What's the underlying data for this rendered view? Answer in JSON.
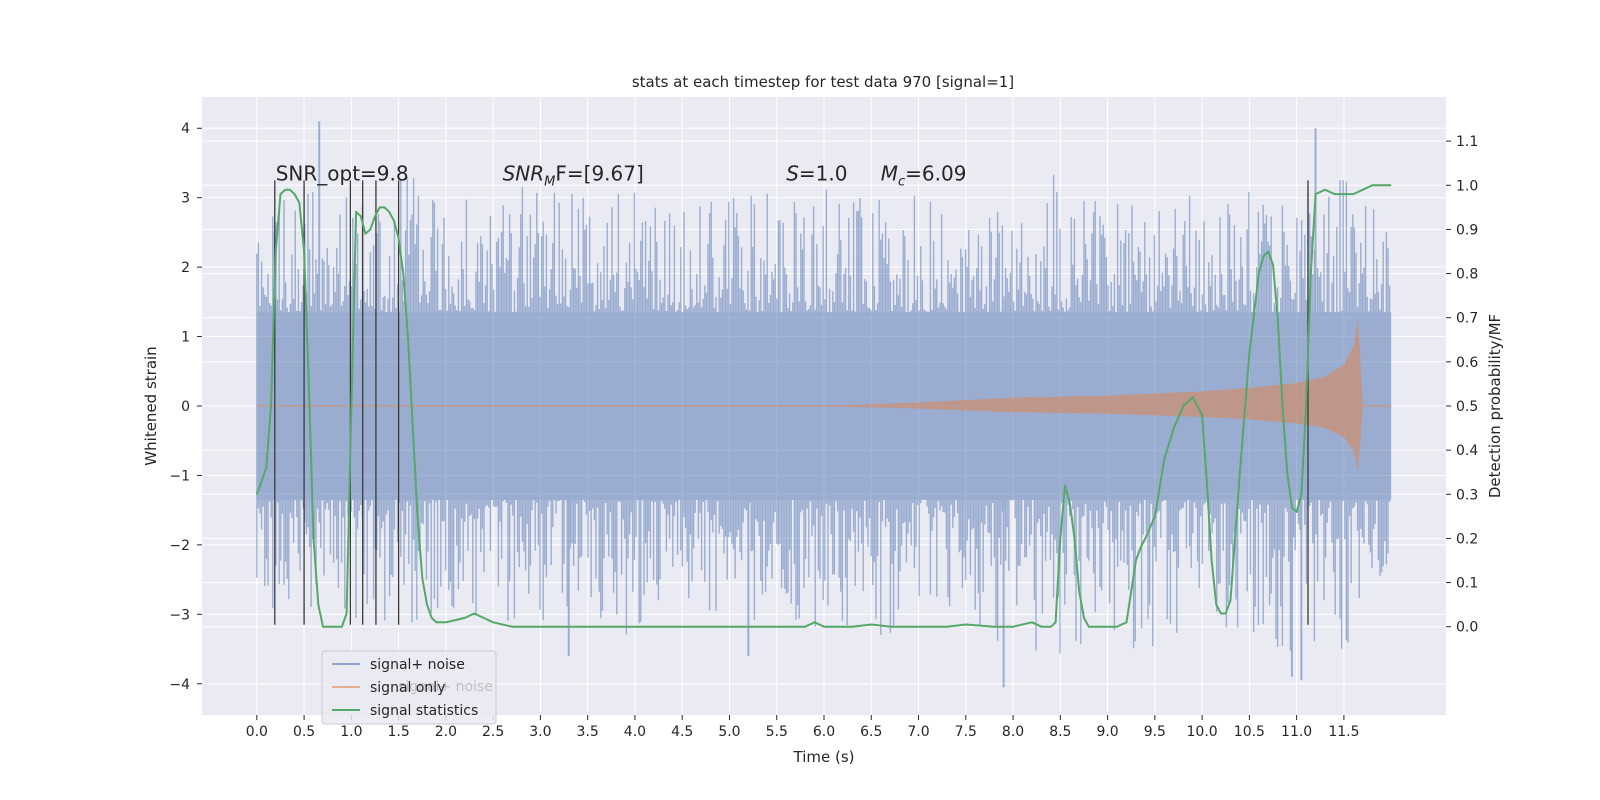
{
  "chart_data": {
    "type": "line",
    "title": "stats at each timestep for test data 970 [signal=1]",
    "xlabel": "Time (s)",
    "ylabel": "Whitened strain",
    "ylabel_right": "Detection probability/MF",
    "xlim": [
      -0.58,
      12.58
    ],
    "ylim": [
      -4.45,
      4.45
    ],
    "ylim_right": [
      -0.2,
      1.2
    ],
    "x_ticks": [
      0.0,
      0.5,
      1.0,
      1.5,
      2.0,
      2.5,
      3.0,
      3.5,
      4.0,
      4.5,
      5.0,
      5.5,
      6.0,
      6.5,
      7.0,
      7.5,
      8.0,
      8.5,
      9.0,
      9.5,
      10.0,
      10.5,
      11.0,
      11.5
    ],
    "x_tick_labels": [
      "0.0",
      "0.5",
      "1.0",
      "1.5",
      "2.0",
      "2.5",
      "3.0",
      "3.5",
      "4.0",
      "4.5",
      "5.0",
      "5.5",
      "6.0",
      "6.5",
      "7.0",
      "7.5",
      "8.0",
      "8.5",
      "9.0",
      "9.5",
      "10.0",
      "10.5",
      "11.0",
      "11.5"
    ],
    "y_ticks": [
      -4,
      -3,
      -2,
      -1,
      0,
      1,
      2,
      3,
      4
    ],
    "y_tick_labels": [
      "−4",
      "−3",
      "−2",
      "−1",
      "0",
      "1",
      "2",
      "3",
      "4"
    ],
    "y_ticks_right": [
      0.0,
      0.1,
      0.2,
      0.3,
      0.4,
      0.5,
      0.6,
      0.7,
      0.8,
      0.9,
      1.0,
      1.1
    ],
    "y_tick_labels_right": [
      "0.0",
      "0.1",
      "0.2",
      "0.3",
      "0.4",
      "0.5",
      "0.6",
      "0.7",
      "0.8",
      "0.9",
      "1.0",
      "1.1"
    ],
    "grid": true,
    "legend_position": "lower-left",
    "annotations": [
      {
        "text_parts": [
          {
            "t": "SNR_opt=9.8",
            "italic": false,
            "sub": false
          }
        ],
        "x": 0.2,
        "y": 3.25
      },
      {
        "text_parts": [
          {
            "t": "SNR",
            "italic": true,
            "sub": false
          },
          {
            "t": "M",
            "italic": true,
            "sub": true
          },
          {
            "t": "F=[9.67]",
            "italic": false,
            "sub": false
          }
        ],
        "x": 2.6,
        "y": 3.25
      },
      {
        "text_parts": [
          {
            "t": "S",
            "italic": true,
            "sub": false
          },
          {
            "t": "=1.0",
            "italic": false,
            "sub": false
          }
        ],
        "x": 5.6,
        "y": 3.25
      },
      {
        "text_parts": [
          {
            "t": "M",
            "italic": true,
            "sub": false
          },
          {
            "t": "c",
            "italic": true,
            "sub": true
          },
          {
            "t": "=6.09",
            "italic": false,
            "sub": false
          }
        ],
        "x": 6.6,
        "y": 3.25
      }
    ],
    "series": [
      {
        "name": "signal+ noise",
        "color": "#4c72b0",
        "kind": "noise-band",
        "x_range": [
          0.0,
          12.0
        ],
        "core_amplitude": 1.35,
        "envelope_x": [
          0.0,
          0.5,
          1.0,
          1.5,
          2.0,
          2.5,
          3.0,
          3.5,
          4.0,
          4.5,
          5.0,
          5.5,
          6.0,
          6.5,
          7.0,
          7.5,
          8.0,
          8.5,
          9.0,
          9.5,
          10.0,
          10.5,
          11.0,
          11.5,
          12.0
        ],
        "envelope_upper": [
          2.7,
          3.2,
          3.0,
          3.4,
          3.1,
          3.3,
          3.2,
          3.0,
          3.1,
          2.9,
          3.0,
          3.1,
          3.2,
          3.0,
          3.2,
          3.0,
          3.1,
          3.4,
          3.1,
          3.2,
          3.0,
          3.1,
          3.2,
          3.4,
          2.6
        ],
        "envelope_lower": [
          -3.2,
          -3.0,
          -3.1,
          -3.2,
          -3.0,
          -3.1,
          -3.2,
          -3.1,
          -3.4,
          -3.1,
          -3.0,
          -3.3,
          -3.2,
          -3.4,
          -3.1,
          -3.2,
          -3.9,
          -3.6,
          -3.4,
          -3.6,
          -3.3,
          -3.4,
          -3.8,
          -3.6,
          -2.6
        ],
        "spikes": [
          {
            "x": 0.66,
            "y": 4.1
          },
          {
            "x": 11.2,
            "y": 4.0
          },
          {
            "x": 7.9,
            "y": -4.05
          },
          {
            "x": 11.05,
            "y": -3.95
          },
          {
            "x": 10.95,
            "y": -3.9
          },
          {
            "x": 3.3,
            "y": -3.6
          },
          {
            "x": 5.2,
            "y": -3.6
          }
        ]
      },
      {
        "name": "signal only",
        "color": "#dd8452",
        "kind": "chirp",
        "x": [
          0.0,
          6.0,
          7.0,
          8.0,
          9.0,
          9.5,
          10.0,
          10.5,
          11.0,
          11.3,
          11.5,
          11.6,
          11.65,
          11.7
        ],
        "amplitude": [
          0.0,
          0.0,
          0.05,
          0.12,
          0.15,
          0.18,
          0.21,
          0.26,
          0.33,
          0.42,
          0.6,
          0.85,
          1.25,
          0.0
        ]
      },
      {
        "name": "signal statistics",
        "color": "#55a868",
        "axis": "right",
        "x": [
          0.0,
          0.1,
          0.15,
          0.2,
          0.25,
          0.3,
          0.35,
          0.4,
          0.45,
          0.5,
          0.55,
          0.6,
          0.65,
          0.7,
          0.75,
          0.8,
          0.9,
          0.95,
          1.0,
          1.05,
          1.1,
          1.15,
          1.2,
          1.25,
          1.3,
          1.35,
          1.4,
          1.45,
          1.5,
          1.55,
          1.6,
          1.65,
          1.7,
          1.75,
          1.8,
          1.85,
          1.9,
          2.0,
          2.1,
          2.2,
          2.3,
          2.4,
          2.5,
          2.7,
          3.0,
          3.5,
          3.8,
          4.0,
          4.5,
          5.0,
          5.5,
          5.8,
          5.9,
          6.0,
          6.3,
          6.5,
          6.7,
          7.0,
          7.3,
          7.5,
          7.8,
          8.0,
          8.2,
          8.3,
          8.4,
          8.45,
          8.5,
          8.55,
          8.6,
          8.65,
          8.7,
          8.75,
          8.8,
          8.9,
          9.0,
          9.1,
          9.2,
          9.3,
          9.35,
          9.4,
          9.5,
          9.6,
          9.7,
          9.8,
          9.9,
          10.0,
          10.05,
          10.1,
          10.15,
          10.2,
          10.25,
          10.3,
          10.4,
          10.5,
          10.6,
          10.65,
          10.7,
          10.75,
          10.8,
          10.85,
          10.9,
          10.95,
          11.0,
          11.05,
          11.1,
          11.15,
          11.2,
          11.3,
          11.4,
          11.5,
          11.6,
          11.7,
          11.8,
          11.9,
          12.0
        ],
        "values": [
          0.3,
          0.36,
          0.5,
          0.85,
          0.98,
          0.99,
          0.99,
          0.98,
          0.96,
          0.85,
          0.55,
          0.2,
          0.05,
          0.0,
          0.0,
          0.0,
          0.0,
          0.03,
          0.5,
          0.94,
          0.93,
          0.89,
          0.9,
          0.93,
          0.95,
          0.95,
          0.94,
          0.92,
          0.88,
          0.8,
          0.65,
          0.45,
          0.25,
          0.11,
          0.05,
          0.02,
          0.01,
          0.01,
          0.015,
          0.02,
          0.03,
          0.02,
          0.01,
          0.0,
          0.0,
          0.0,
          0.0,
          0.0,
          0.0,
          0.0,
          0.0,
          0.0,
          0.01,
          0.0,
          0.0,
          0.005,
          0.0,
          0.0,
          0.0,
          0.005,
          0.0,
          0.0,
          0.01,
          0.0,
          0.0,
          0.01,
          0.2,
          0.32,
          0.28,
          0.2,
          0.08,
          0.02,
          0.0,
          0.0,
          0.0,
          0.0,
          0.01,
          0.15,
          0.18,
          0.2,
          0.25,
          0.38,
          0.45,
          0.5,
          0.52,
          0.48,
          0.33,
          0.15,
          0.05,
          0.03,
          0.03,
          0.06,
          0.35,
          0.62,
          0.8,
          0.84,
          0.85,
          0.82,
          0.7,
          0.5,
          0.35,
          0.27,
          0.26,
          0.3,
          0.5,
          0.8,
          0.98,
          0.99,
          0.98,
          0.98,
          0.98,
          0.99,
          1.0,
          1.0,
          1.0
        ]
      }
    ],
    "marker_lines": {
      "color": "#3a3a3a",
      "x": [
        0.19,
        0.5,
        0.99,
        1.12,
        1.26,
        1.5,
        11.12
      ],
      "y_top": 3.25,
      "y_bottom": -3.15
    }
  },
  "legend": [
    {
      "label": "signal+ noise",
      "color": "#4c72b0"
    },
    {
      "label": "signal only",
      "color": "#dd8452"
    },
    {
      "label": "signal statistics",
      "color": "#55a868"
    }
  ],
  "legend_hidden_text": "signal+ noise",
  "style": {
    "plot_bg": "#eaeaf2",
    "grid_color": "#ffffff",
    "text_color": "#262626"
  }
}
